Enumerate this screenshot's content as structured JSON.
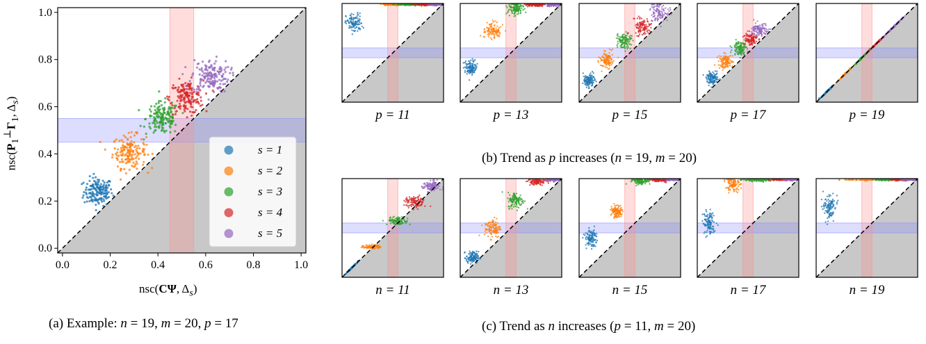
{
  "colors": {
    "s1": "#1f77b4",
    "s2": "#ff7f0e",
    "s3": "#2ca02c",
    "s4": "#d62728",
    "s5": "#9467bd",
    "gray": "#c8c8c8",
    "blueband": "#8f8fff",
    "redband": "#ff8f8f"
  },
  "captions": {
    "a": "(a) Example: n = 19, m = 20, p = 17",
    "b": "(b) Trend as p increases (n = 19, m = 20)",
    "c": "(c) Trend as n increases (p = 11, m = 20)"
  },
  "chart_data": [
    {
      "type": "scatter",
      "id": "main",
      "xlabel": "nsc(CΨ, Δs)",
      "ylabel": "nsc(P₁⊥Γ₁, Δs)",
      "xlim": [
        0,
        1
      ],
      "ylim": [
        0,
        1
      ],
      "xticks": [
        "0.0",
        "0.2",
        "0.4",
        "0.6",
        "0.8",
        "1.0"
      ],
      "yticks": [
        "0.0",
        "0.2",
        "0.4",
        "0.6",
        "0.8",
        "1.0"
      ],
      "legend_position": "bottom-right",
      "diagonal": "y = x dashed",
      "shaded_region": "below diagonal",
      "blue_band_y": [
        0.45,
        0.55
      ],
      "red_band_x": [
        0.45,
        0.55
      ],
      "series": [
        {
          "name": "s = 1",
          "cx": 0.15,
          "cy": 0.24,
          "sx": 0.03,
          "sy": 0.03
        },
        {
          "name": "s = 2",
          "cx": 0.28,
          "cy": 0.41,
          "sx": 0.035,
          "sy": 0.035
        },
        {
          "name": "s = 3",
          "cx": 0.42,
          "cy": 0.55,
          "sx": 0.035,
          "sy": 0.035
        },
        {
          "name": "s = 4",
          "cx": 0.52,
          "cy": 0.64,
          "sx": 0.035,
          "sy": 0.035
        },
        {
          "name": "s = 5",
          "cx": 0.62,
          "cy": 0.73,
          "sx": 0.04,
          "sy": 0.035
        }
      ]
    },
    {
      "type": "scatter_grid",
      "id": "trend_p",
      "panels": [
        {
          "label": "p = 11",
          "clusters": [
            [
              0.12,
              0.8,
              0.04,
              0.05
            ],
            [
              0.52,
              0.99,
              0.06,
              0.005
            ],
            [
              0.68,
              0.99,
              0.06,
              0.005
            ],
            [
              0.82,
              0.99,
              0.05,
              0.005
            ],
            [
              0.93,
              0.99,
              0.04,
              0.005
            ]
          ]
        },
        {
          "label": "p = 13",
          "clusters": [
            [
              0.1,
              0.35,
              0.03,
              0.04
            ],
            [
              0.32,
              0.72,
              0.04,
              0.04
            ],
            [
              0.55,
              0.95,
              0.04,
              0.03
            ],
            [
              0.75,
              0.99,
              0.05,
              0.01
            ],
            [
              0.92,
              0.99,
              0.04,
              0.01
            ]
          ]
        },
        {
          "label": "p = 15",
          "clusters": [
            [
              0.1,
              0.22,
              0.03,
              0.03
            ],
            [
              0.27,
              0.42,
              0.03,
              0.04
            ],
            [
              0.45,
              0.63,
              0.04,
              0.04
            ],
            [
              0.62,
              0.77,
              0.04,
              0.04
            ],
            [
              0.8,
              0.92,
              0.05,
              0.05
            ]
          ]
        },
        {
          "label": "p = 17",
          "clusters": [
            [
              0.15,
              0.24,
              0.03,
              0.03
            ],
            [
              0.28,
              0.41,
              0.035,
              0.035
            ],
            [
              0.42,
              0.55,
              0.035,
              0.035
            ],
            [
              0.52,
              0.64,
              0.035,
              0.035
            ],
            [
              0.62,
              0.73,
              0.04,
              0.035
            ]
          ]
        },
        {
          "label": "p = 19",
          "clusters": [
            [
              0.1,
              0.1,
              0.03,
              0.0
            ],
            [
              0.28,
              0.28,
              0.035,
              0.0
            ],
            [
              0.45,
              0.45,
              0.04,
              0.0
            ],
            [
              0.6,
              0.6,
              0.04,
              0.0
            ],
            [
              0.75,
              0.75,
              0.05,
              0.0
            ]
          ]
        }
      ]
    },
    {
      "type": "scatter_grid",
      "id": "trend_n",
      "panels": [
        {
          "label": "n = 11",
          "clusters": [
            [
              0.1,
              0.1,
              0.03,
              0.0
            ],
            [
              0.3,
              0.31,
              0.04,
              0.01
            ],
            [
              0.55,
              0.57,
              0.05,
              0.02
            ],
            [
              0.72,
              0.76,
              0.05,
              0.03
            ],
            [
              0.88,
              0.92,
              0.04,
              0.03
            ]
          ]
        },
        {
          "label": "n = 13",
          "clusters": [
            [
              0.12,
              0.2,
              0.03,
              0.03
            ],
            [
              0.32,
              0.5,
              0.04,
              0.05
            ],
            [
              0.55,
              0.78,
              0.04,
              0.04
            ],
            [
              0.76,
              0.97,
              0.04,
              0.02
            ],
            [
              0.92,
              0.99,
              0.04,
              0.01
            ]
          ]
        },
        {
          "label": "n = 15",
          "clusters": [
            [
              0.12,
              0.4,
              0.03,
              0.04
            ],
            [
              0.37,
              0.67,
              0.03,
              0.03
            ],
            [
              0.6,
              0.98,
              0.04,
              0.02
            ],
            [
              0.8,
              0.99,
              0.05,
              0.01
            ],
            [
              0.93,
              0.99,
              0.04,
              0.005
            ]
          ]
        },
        {
          "label": "n = 17",
          "clusters": [
            [
              0.12,
              0.55,
              0.03,
              0.06
            ],
            [
              0.35,
              0.95,
              0.03,
              0.04
            ],
            [
              0.6,
              0.99,
              0.08,
              0.01
            ],
            [
              0.82,
              0.99,
              0.05,
              0.005
            ],
            [
              0.94,
              0.99,
              0.04,
              0.005
            ]
          ]
        },
        {
          "label": "n = 19",
          "clusters": [
            [
              0.13,
              0.7,
              0.03,
              0.06
            ],
            [
              0.45,
              0.99,
              0.08,
              0.005
            ],
            [
              0.68,
              0.99,
              0.06,
              0.005
            ],
            [
              0.84,
              0.99,
              0.05,
              0.005
            ],
            [
              0.94,
              0.99,
              0.04,
              0.005
            ]
          ]
        }
      ]
    }
  ]
}
